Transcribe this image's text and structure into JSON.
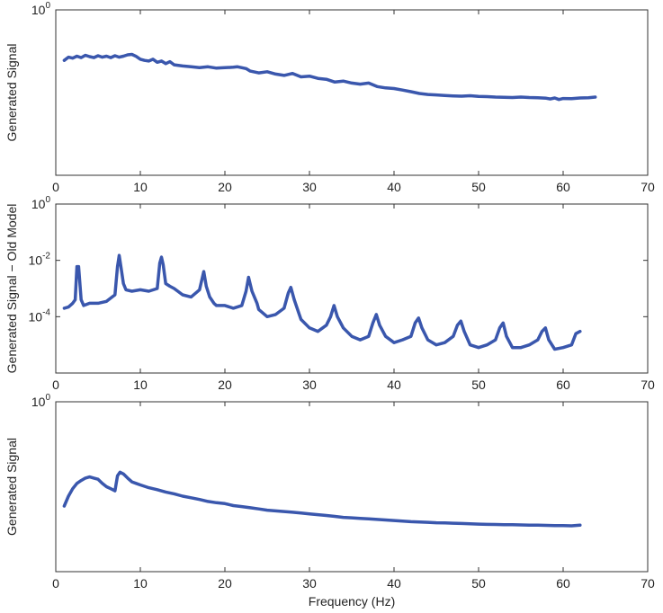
{
  "chart_data": [
    {
      "type": "line",
      "title": "",
      "xlabel": "",
      "ylabel": "Generated Signal",
      "xlim": [
        0,
        70
      ],
      "yscale": "log",
      "ylim": [
        0.0001,
        1
      ],
      "x_ticks": [
        0,
        10,
        20,
        30,
        40,
        50,
        60,
        70
      ],
      "y_ticks": [
        {
          "value": 1,
          "base": "10",
          "exp": "0"
        }
      ],
      "grid": false,
      "series": [
        {
          "color": "#3a57ad",
          "x": [
            1,
            1.5,
            2,
            2.5,
            3,
            3.5,
            4,
            4.5,
            5,
            5.5,
            6,
            6.5,
            7,
            7.5,
            8,
            8.5,
            9,
            9.5,
            10,
            10.5,
            11,
            11.5,
            12,
            12.5,
            13,
            13.5,
            14,
            15,
            16,
            17,
            18,
            19,
            20,
            21,
            21.5,
            22,
            22.5,
            23,
            24,
            25,
            26,
            27,
            28,
            29,
            30,
            31,
            32,
            33,
            34,
            35,
            36,
            37,
            38,
            39,
            40,
            41,
            42,
            43,
            44,
            45,
            46,
            47,
            48,
            49,
            50,
            51,
            52,
            53,
            54,
            55,
            56,
            57,
            58,
            58.5,
            59,
            59.5,
            60,
            61,
            62,
            63,
            63.8
          ],
          "y": [
            0.06,
            0.072,
            0.068,
            0.076,
            0.07,
            0.08,
            0.074,
            0.07,
            0.078,
            0.072,
            0.076,
            0.07,
            0.078,
            0.072,
            0.076,
            0.082,
            0.084,
            0.075,
            0.064,
            0.06,
            0.058,
            0.064,
            0.054,
            0.058,
            0.05,
            0.056,
            0.047,
            0.044,
            0.042,
            0.04,
            0.042,
            0.039,
            0.04,
            0.041,
            0.042,
            0.04,
            0.038,
            0.033,
            0.03,
            0.032,
            0.028,
            0.026,
            0.029,
            0.024,
            0.025,
            0.022,
            0.021,
            0.018,
            0.019,
            0.017,
            0.016,
            0.017,
            0.014,
            0.013,
            0.0125,
            0.0115,
            0.0105,
            0.0095,
            0.009,
            0.0088,
            0.0085,
            0.0083,
            0.0082,
            0.0084,
            0.0081,
            0.008,
            0.0078,
            0.0077,
            0.0076,
            0.0078,
            0.0076,
            0.0075,
            0.0073,
            0.007,
            0.0074,
            0.0068,
            0.0072,
            0.0071,
            0.0074,
            0.0075,
            0.0078
          ]
        }
      ]
    },
    {
      "type": "line",
      "title": "",
      "xlabel": "",
      "ylabel": "Generated Signal − Old Model",
      "xlim": [
        0,
        70
      ],
      "yscale": "log",
      "ylim": [
        1e-06,
        1
      ],
      "x_ticks": [
        0,
        10,
        20,
        30,
        40,
        50,
        60,
        70
      ],
      "y_ticks": [
        {
          "value": 1,
          "base": "10",
          "exp": "0"
        },
        {
          "value": 0.01,
          "base": "10",
          "exp": "-2"
        },
        {
          "value": 0.0001,
          "base": "10",
          "exp": "-4"
        }
      ],
      "grid": false,
      "series": [
        {
          "color": "#3a57ad",
          "x": [
            1,
            1.5,
            2,
            2.3,
            2.5,
            2.7,
            3,
            3.3,
            4,
            5,
            6,
            7,
            7.3,
            7.5,
            7.7,
            8,
            8.3,
            9,
            10,
            11,
            12,
            12.3,
            12.5,
            12.7,
            13,
            13.5,
            14,
            15,
            16,
            17,
            17.5,
            17.8,
            18.2,
            18.7,
            19,
            20,
            21,
            22,
            22.5,
            22.8,
            23.2,
            23.8,
            24,
            25,
            26,
            27,
            27.5,
            27.8,
            28.2,
            28.8,
            29,
            30,
            31,
            32,
            32.5,
            32.9,
            33.3,
            34,
            35,
            36,
            37,
            37.5,
            37.9,
            38.3,
            39,
            40,
            41,
            42,
            42.5,
            42.9,
            43.3,
            44,
            45,
            46,
            47,
            47.5,
            47.9,
            48.3,
            49,
            50,
            51,
            52,
            52.5,
            52.9,
            53.3,
            54,
            55,
            56,
            57,
            57.5,
            57.9,
            58.3,
            59,
            60,
            61,
            61.5,
            62
          ],
          "y": [
            0.0002,
            0.00022,
            0.0003,
            0.0004,
            0.006,
            0.006,
            0.0004,
            0.00025,
            0.0003,
            0.0003,
            0.00035,
            0.0006,
            0.006,
            0.015,
            0.006,
            0.0015,
            0.0009,
            0.0008,
            0.0009,
            0.0008,
            0.001,
            0.008,
            0.013,
            0.007,
            0.0015,
            0.0012,
            0.001,
            0.0006,
            0.0005,
            0.0009,
            0.004,
            0.0012,
            0.0005,
            0.0003,
            0.00025,
            0.00025,
            0.0002,
            0.00025,
            0.0008,
            0.0025,
            0.0008,
            0.0003,
            0.00018,
            0.0001,
            0.00012,
            0.0002,
            0.0007,
            0.0011,
            0.0004,
            0.00012,
            8e-05,
            4e-05,
            3e-05,
            5e-05,
            0.0001,
            0.00025,
            0.0001,
            4e-05,
            2e-05,
            1.5e-05,
            2e-05,
            6e-05,
            0.00012,
            5e-05,
            2e-05,
            1.2e-05,
            1.5e-05,
            2e-05,
            6e-05,
            9e-05,
            4e-05,
            1.5e-05,
            1e-05,
            1.2e-05,
            2e-05,
            5e-05,
            7e-05,
            3e-05,
            1e-05,
            8e-06,
            1e-05,
            1.5e-05,
            4e-05,
            6e-05,
            2e-05,
            8e-06,
            8e-06,
            1e-05,
            1.5e-05,
            3e-05,
            4e-05,
            1.5e-05,
            7e-06,
            8e-06,
            1e-05,
            2.5e-05,
            3e-05
          ]
        }
      ]
    },
    {
      "type": "line",
      "title": "",
      "xlabel": "Frequency (Hz)",
      "ylabel": "Generated Signal",
      "xlim": [
        0,
        70
      ],
      "yscale": "log",
      "ylim": [
        0.0001,
        1
      ],
      "x_ticks": [
        0,
        10,
        20,
        30,
        40,
        50,
        60,
        70
      ],
      "y_ticks": [
        {
          "value": 1,
          "base": "10",
          "exp": "0"
        }
      ],
      "grid": false,
      "series": [
        {
          "color": "#3a57ad",
          "x": [
            1,
            1.5,
            2,
            2.5,
            3,
            3.5,
            4,
            4.5,
            5,
            5.5,
            6,
            6.5,
            7,
            7.3,
            7.6,
            8,
            8.5,
            9,
            9.5,
            10,
            11,
            12,
            13,
            14,
            15,
            16,
            17,
            18,
            19,
            20,
            21,
            22,
            23,
            24,
            25,
            26,
            27,
            28,
            29,
            30,
            31,
            32,
            33,
            34,
            35,
            36,
            37,
            38,
            39,
            40,
            41,
            42,
            43,
            44,
            45,
            46,
            47,
            48,
            49,
            50,
            51,
            52,
            53,
            54,
            55,
            56,
            57,
            58,
            59,
            60,
            61,
            62
          ],
          "y": [
            0.0035,
            0.006,
            0.009,
            0.012,
            0.014,
            0.016,
            0.017,
            0.016,
            0.015,
            0.012,
            0.01,
            0.009,
            0.008,
            0.018,
            0.022,
            0.02,
            0.016,
            0.013,
            0.012,
            0.011,
            0.0095,
            0.0085,
            0.0075,
            0.0068,
            0.006,
            0.0055,
            0.005,
            0.0045,
            0.0042,
            0.004,
            0.0036,
            0.0034,
            0.0032,
            0.003,
            0.0028,
            0.0027,
            0.0026,
            0.0025,
            0.0024,
            0.0023,
            0.0022,
            0.0021,
            0.002,
            0.0019,
            0.00185,
            0.0018,
            0.00175,
            0.0017,
            0.00165,
            0.0016,
            0.00155,
            0.0015,
            0.00148,
            0.00145,
            0.00142,
            0.0014,
            0.00138,
            0.00136,
            0.00134,
            0.00132,
            0.0013,
            0.00129,
            0.00128,
            0.00127,
            0.00126,
            0.00125,
            0.00124,
            0.00123,
            0.00122,
            0.00121,
            0.0012,
            0.00125
          ]
        }
      ]
    }
  ]
}
